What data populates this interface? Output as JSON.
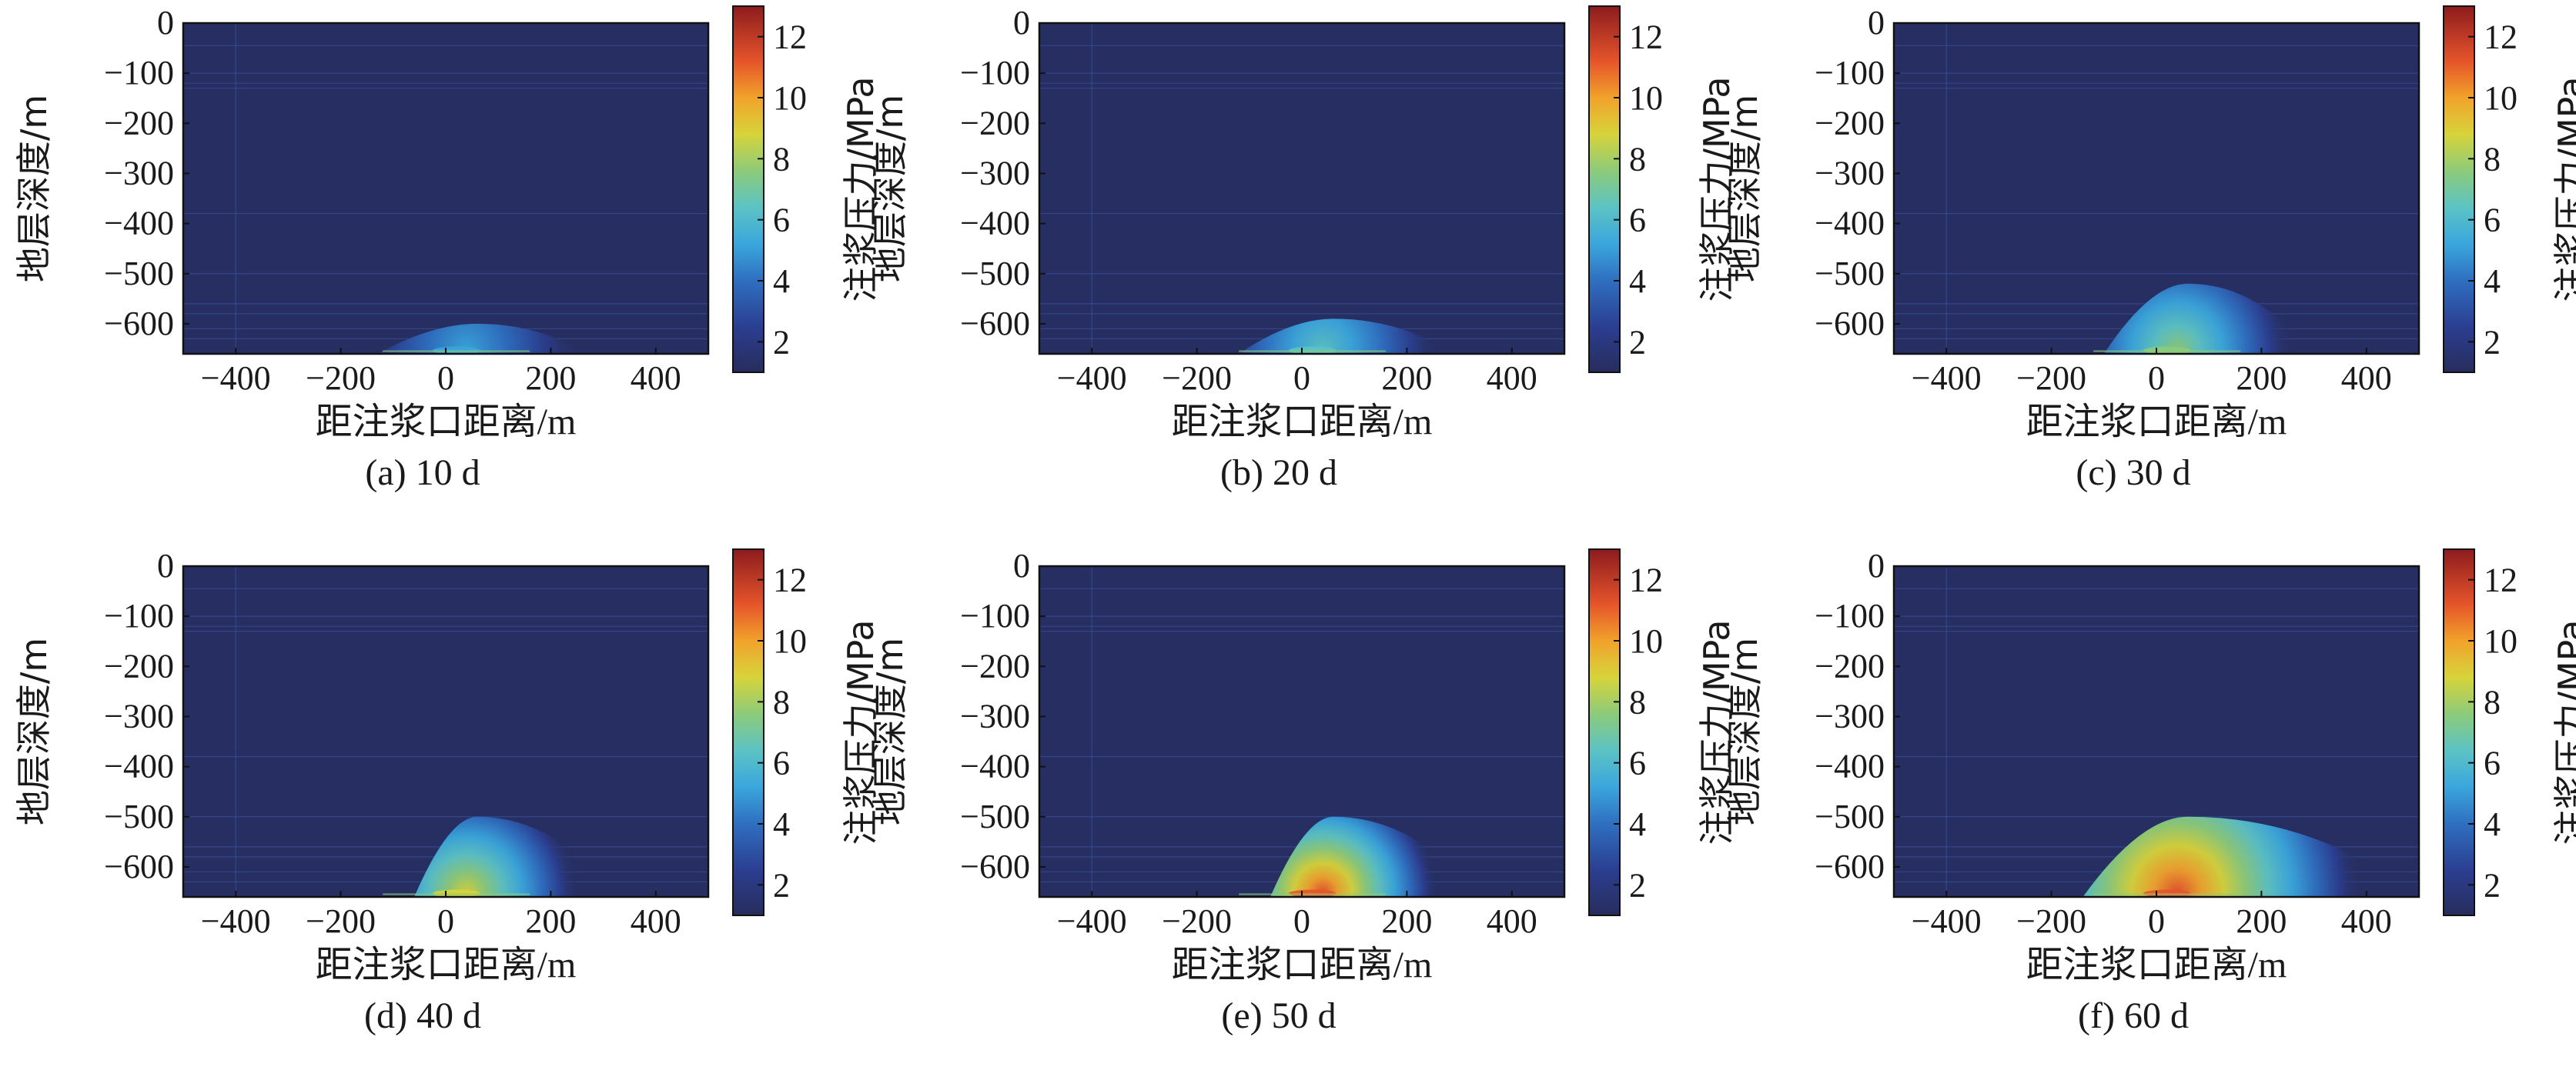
{
  "figure": {
    "panel_order": [
      "a",
      "b",
      "c",
      "d",
      "e",
      "f"
    ]
  },
  "chart_data": [
    {
      "type": "heatmap",
      "panel": "a",
      "caption": "(a) 10 d",
      "xlabel": "距注浆口距离/m",
      "ylabel": "地层深度/m",
      "colorbar_label": "注浆压力/MPa",
      "xlim": [
        -500,
        500
      ],
      "ylim": [
        -660,
        0
      ],
      "xticks": [
        -400,
        -200,
        0,
        200,
        400
      ],
      "yticks": [
        0,
        -100,
        -200,
        -300,
        -400,
        -500,
        -600
      ],
      "colorbar_range": [
        1,
        13
      ],
      "colorbar_ticks": [
        2,
        4,
        6,
        8,
        10,
        12
      ],
      "background_value": 1.2,
      "injection_point": {
        "x": 0,
        "y": -650
      },
      "plume": {
        "x_range": [
          -130,
          270
        ],
        "top_depth": -600,
        "max_value": 6
      }
    },
    {
      "type": "heatmap",
      "panel": "b",
      "caption": "(b) 20 d",
      "xlabel": "距注浆口距离/m",
      "ylabel": "地层深度/m",
      "colorbar_label": "注浆压力/MPa",
      "xlim": [
        -500,
        500
      ],
      "ylim": [
        -660,
        0
      ],
      "xticks": [
        -400,
        -200,
        0,
        200,
        400
      ],
      "yticks": [
        0,
        -100,
        -200,
        -300,
        -400,
        -500,
        -600
      ],
      "colorbar_range": [
        1,
        13
      ],
      "colorbar_ticks": [
        2,
        4,
        6,
        8,
        10,
        12
      ],
      "background_value": 1.2,
      "injection_point": {
        "x": 0,
        "y": -650
      },
      "plume": {
        "x_range": [
          -120,
          290
        ],
        "top_depth": -590,
        "max_value": 7
      }
    },
    {
      "type": "heatmap",
      "panel": "c",
      "caption": "(c) 30 d",
      "xlabel": "距注浆口距离/m",
      "ylabel": "地层深度/m",
      "colorbar_label": "注浆压力/MPa",
      "xlim": [
        -500,
        500
      ],
      "ylim": [
        -660,
        0
      ],
      "xticks": [
        -400,
        -200,
        0,
        200,
        400
      ],
      "yticks": [
        0,
        -100,
        -200,
        -300,
        -400,
        -500,
        -600
      ],
      "colorbar_range": [
        1,
        13
      ],
      "colorbar_ticks": [
        2,
        4,
        6,
        8,
        10,
        12
      ],
      "background_value": 1.2,
      "injection_point": {
        "x": 0,
        "y": -650
      },
      "plume": {
        "x_range": [
          -100,
          300
        ],
        "top_depth": -520,
        "max_value": 8
      }
    },
    {
      "type": "heatmap",
      "panel": "d",
      "caption": "(d) 40 d",
      "xlabel": "距注浆口距离/m",
      "ylabel": "地层深度/m",
      "colorbar_label": "注浆压力/MPa",
      "xlim": [
        -500,
        500
      ],
      "ylim": [
        -660,
        0
      ],
      "xticks": [
        -400,
        -200,
        0,
        200,
        400
      ],
      "yticks": [
        0,
        -100,
        -200,
        -300,
        -400,
        -500,
        -600
      ],
      "colorbar_range": [
        1,
        13
      ],
      "colorbar_ticks": [
        2,
        4,
        6,
        8,
        10,
        12
      ],
      "background_value": 1.2,
      "injection_point": {
        "x": 0,
        "y": -650
      },
      "plume": {
        "x_range": [
          -60,
          330
        ],
        "top_depth": -500,
        "max_value": 9
      }
    },
    {
      "type": "heatmap",
      "panel": "e",
      "caption": "(e) 50 d",
      "xlabel": "距注浆口距离/m",
      "ylabel": "地层深度/m",
      "colorbar_label": "注浆压力/MPa",
      "xlim": [
        -500,
        500
      ],
      "ylim": [
        -660,
        0
      ],
      "xticks": [
        -400,
        -200,
        0,
        200,
        400
      ],
      "yticks": [
        0,
        -100,
        -200,
        -300,
        -400,
        -500,
        -600
      ],
      "colorbar_range": [
        1,
        13
      ],
      "colorbar_ticks": [
        2,
        4,
        6,
        8,
        10,
        12
      ],
      "background_value": 1.2,
      "injection_point": {
        "x": 0,
        "y": -650
      },
      "plume": {
        "x_range": [
          -60,
          340
        ],
        "top_depth": -500,
        "max_value": 12
      }
    },
    {
      "type": "heatmap",
      "panel": "f",
      "caption": "(f) 60 d",
      "xlabel": "距注浆口距离/m",
      "ylabel": "地层深度/m",
      "colorbar_label": "注浆压力/MPa",
      "xlim": [
        -500,
        500
      ],
      "ylim": [
        -660,
        0
      ],
      "xticks": [
        -400,
        -200,
        0,
        200,
        400
      ],
      "yticks": [
        0,
        -100,
        -200,
        -300,
        -400,
        -500,
        -600
      ],
      "colorbar_range": [
        1,
        13
      ],
      "colorbar_ticks": [
        2,
        4,
        6,
        8,
        10,
        12
      ],
      "background_value": 1.2,
      "injection_point": {
        "x": 0,
        "y": -650
      },
      "plume": {
        "x_range": [
          -140,
          500
        ],
        "top_depth": -500,
        "max_value": 12
      }
    }
  ]
}
